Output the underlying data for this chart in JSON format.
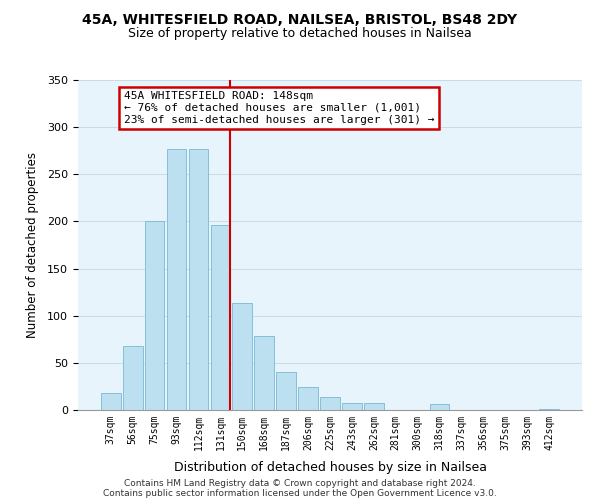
{
  "title1": "45A, WHITESFIELD ROAD, NAILSEA, BRISTOL, BS48 2DY",
  "title2": "Size of property relative to detached houses in Nailsea",
  "xlabel": "Distribution of detached houses by size in Nailsea",
  "ylabel": "Number of detached properties",
  "bar_labels": [
    "37sqm",
    "56sqm",
    "75sqm",
    "93sqm",
    "112sqm",
    "131sqm",
    "150sqm",
    "168sqm",
    "187sqm",
    "206sqm",
    "225sqm",
    "243sqm",
    "262sqm",
    "281sqm",
    "300sqm",
    "318sqm",
    "337sqm",
    "356sqm",
    "375sqm",
    "393sqm",
    "412sqm"
  ],
  "bar_values": [
    18,
    68,
    200,
    277,
    277,
    196,
    113,
    79,
    40,
    24,
    14,
    7,
    7,
    0,
    0,
    6,
    0,
    0,
    0,
    0,
    1
  ],
  "bar_color": "#bde0f0",
  "bar_edge_color": "#7ab8d4",
  "vline_color": "#cc0000",
  "annotation_title": "45A WHITESFIELD ROAD: 148sqm",
  "annotation_line1": "← 76% of detached houses are smaller (1,001)",
  "annotation_line2": "23% of semi-detached houses are larger (301) →",
  "annotation_box_facecolor": "#ffffff",
  "annotation_box_edgecolor": "#cc0000",
  "ylim": [
    0,
    350
  ],
  "yticks": [
    0,
    50,
    100,
    150,
    200,
    250,
    300,
    350
  ],
  "footer1": "Contains HM Land Registry data © Crown copyright and database right 2024.",
  "footer2": "Contains public sector information licensed under the Open Government Licence v3.0.",
  "bg_color": "#e8f4fb"
}
